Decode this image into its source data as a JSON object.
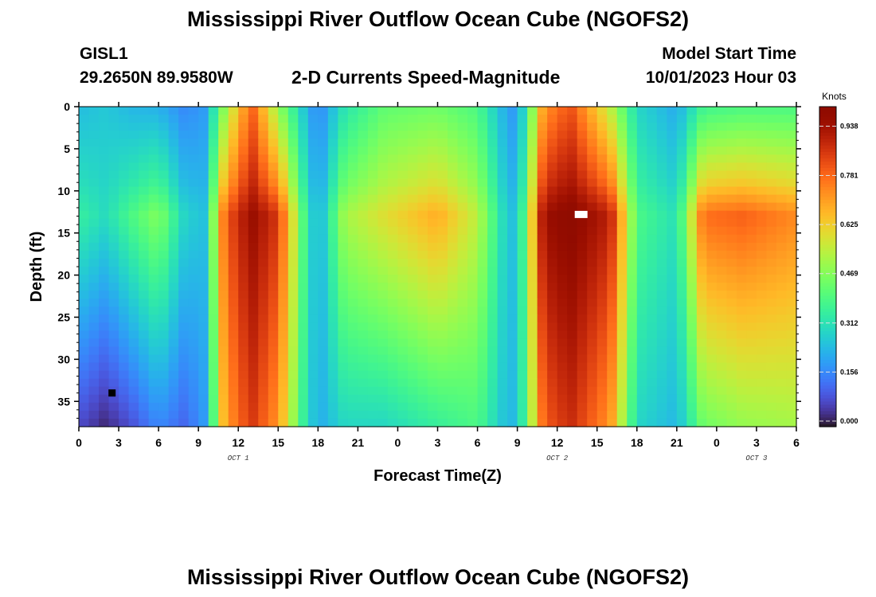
{
  "page": {
    "title": "Mississippi River Outflow Ocean Cube (NGOFS2)",
    "title_repeat": "Mississippi River Outflow Ocean Cube (NGOFS2)"
  },
  "header": {
    "station": "GISL1",
    "coords": "29.2650N  89.9580W",
    "plot_name": "2-D Currents Speed-Magnitude",
    "start_label": "Model Start Time",
    "start_value": "10/01/2023 Hour 03"
  },
  "chart_data": {
    "type": "heatmap",
    "xlabel": "Forecast Time(Z)",
    "ylabel": "Depth (ft)",
    "x_range_hours": [
      0,
      54
    ],
    "y_range_ft": [
      0,
      38
    ],
    "y_ticks": [
      0,
      5,
      10,
      15,
      20,
      25,
      30,
      35
    ],
    "x_ticks": [
      {
        "h": 0,
        "label": "0"
      },
      {
        "h": 3,
        "label": "3"
      },
      {
        "h": 6,
        "label": "6"
      },
      {
        "h": 9,
        "label": "9"
      },
      {
        "h": 12,
        "label": "12"
      },
      {
        "h": 15,
        "label": "15"
      },
      {
        "h": 18,
        "label": "18"
      },
      {
        "h": 21,
        "label": "21"
      },
      {
        "h": 24,
        "label": "0"
      },
      {
        "h": 27,
        "label": "3"
      },
      {
        "h": 30,
        "label": "6"
      },
      {
        "h": 33,
        "label": "9"
      },
      {
        "h": 36,
        "label": "12"
      },
      {
        "h": 39,
        "label": "15"
      },
      {
        "h": 42,
        "label": "18"
      },
      {
        "h": 45,
        "label": "21"
      },
      {
        "h": 48,
        "label": "0"
      },
      {
        "h": 51,
        "label": "3"
      },
      {
        "h": 54,
        "label": "6"
      }
    ],
    "date_labels": [
      {
        "h": 12,
        "label": "OCT 1"
      },
      {
        "h": 36,
        "label": "OCT 2"
      },
      {
        "h": 51,
        "label": "OCT 3"
      }
    ],
    "colorbar": {
      "unit": "Knots",
      "range": [
        0,
        1.0
      ],
      "ticks": [
        0.0,
        0.156,
        0.312,
        0.469,
        0.625,
        0.781,
        0.938
      ],
      "tick_labels": [
        "0.000",
        "0.156",
        "0.312",
        "0.469",
        "0.625",
        "0.781",
        "0.938"
      ],
      "colormap": "turbo"
    },
    "markers": [
      {
        "type": "min",
        "h": 2.5,
        "depth": 34,
        "color": "#000000"
      },
      {
        "type": "max",
        "h": 37.8,
        "depth": 12.8,
        "color": "#ffffff"
      }
    ],
    "time_profile_knots": [
      {
        "h": 0,
        "surface": 0.25,
        "middle": 0.36,
        "bottom": 0.08
      },
      {
        "h": 2,
        "surface": 0.27,
        "middle": 0.31,
        "bottom": 0.03
      },
      {
        "h": 4,
        "surface": 0.24,
        "middle": 0.4,
        "bottom": 0.09
      },
      {
        "h": 6,
        "surface": 0.23,
        "middle": 0.48,
        "bottom": 0.17
      },
      {
        "h": 8,
        "surface": 0.17,
        "middle": 0.29,
        "bottom": 0.12
      },
      {
        "h": 9.5,
        "surface": 0.2,
        "middle": 0.26,
        "bottom": 0.2
      },
      {
        "h": 11,
        "surface": 0.5,
        "middle": 0.8,
        "bottom": 0.7
      },
      {
        "h": 13,
        "surface": 0.8,
        "middle": 0.96,
        "bottom": 0.86
      },
      {
        "h": 15,
        "surface": 0.5,
        "middle": 0.86,
        "bottom": 0.72
      },
      {
        "h": 17,
        "surface": 0.26,
        "middle": 0.38,
        "bottom": 0.34
      },
      {
        "h": 18,
        "surface": 0.16,
        "middle": 0.22,
        "bottom": 0.22
      },
      {
        "h": 20,
        "surface": 0.33,
        "middle": 0.52,
        "bottom": 0.3
      },
      {
        "h": 23,
        "surface": 0.43,
        "middle": 0.6,
        "bottom": 0.3
      },
      {
        "h": 27,
        "surface": 0.45,
        "middle": 0.69,
        "bottom": 0.36
      },
      {
        "h": 30,
        "surface": 0.4,
        "middle": 0.55,
        "bottom": 0.4
      },
      {
        "h": 32,
        "surface": 0.23,
        "middle": 0.3,
        "bottom": 0.26
      },
      {
        "h": 33,
        "surface": 0.18,
        "middle": 0.24,
        "bottom": 0.24
      },
      {
        "h": 35,
        "surface": 0.72,
        "middle": 0.95,
        "bottom": 0.8
      },
      {
        "h": 37,
        "surface": 0.82,
        "middle": 1.0,
        "bottom": 0.88
      },
      {
        "h": 40,
        "surface": 0.55,
        "middle": 0.9,
        "bottom": 0.72
      },
      {
        "h": 42,
        "surface": 0.3,
        "middle": 0.4,
        "bottom": 0.3
      },
      {
        "h": 45,
        "surface": 0.22,
        "middle": 0.32,
        "bottom": 0.24
      },
      {
        "h": 47,
        "surface": 0.38,
        "middle": 0.78,
        "bottom": 0.45
      },
      {
        "h": 50,
        "surface": 0.4,
        "middle": 0.8,
        "bottom": 0.5
      },
      {
        "h": 54,
        "surface": 0.4,
        "middle": 0.74,
        "bottom": 0.52
      }
    ]
  }
}
